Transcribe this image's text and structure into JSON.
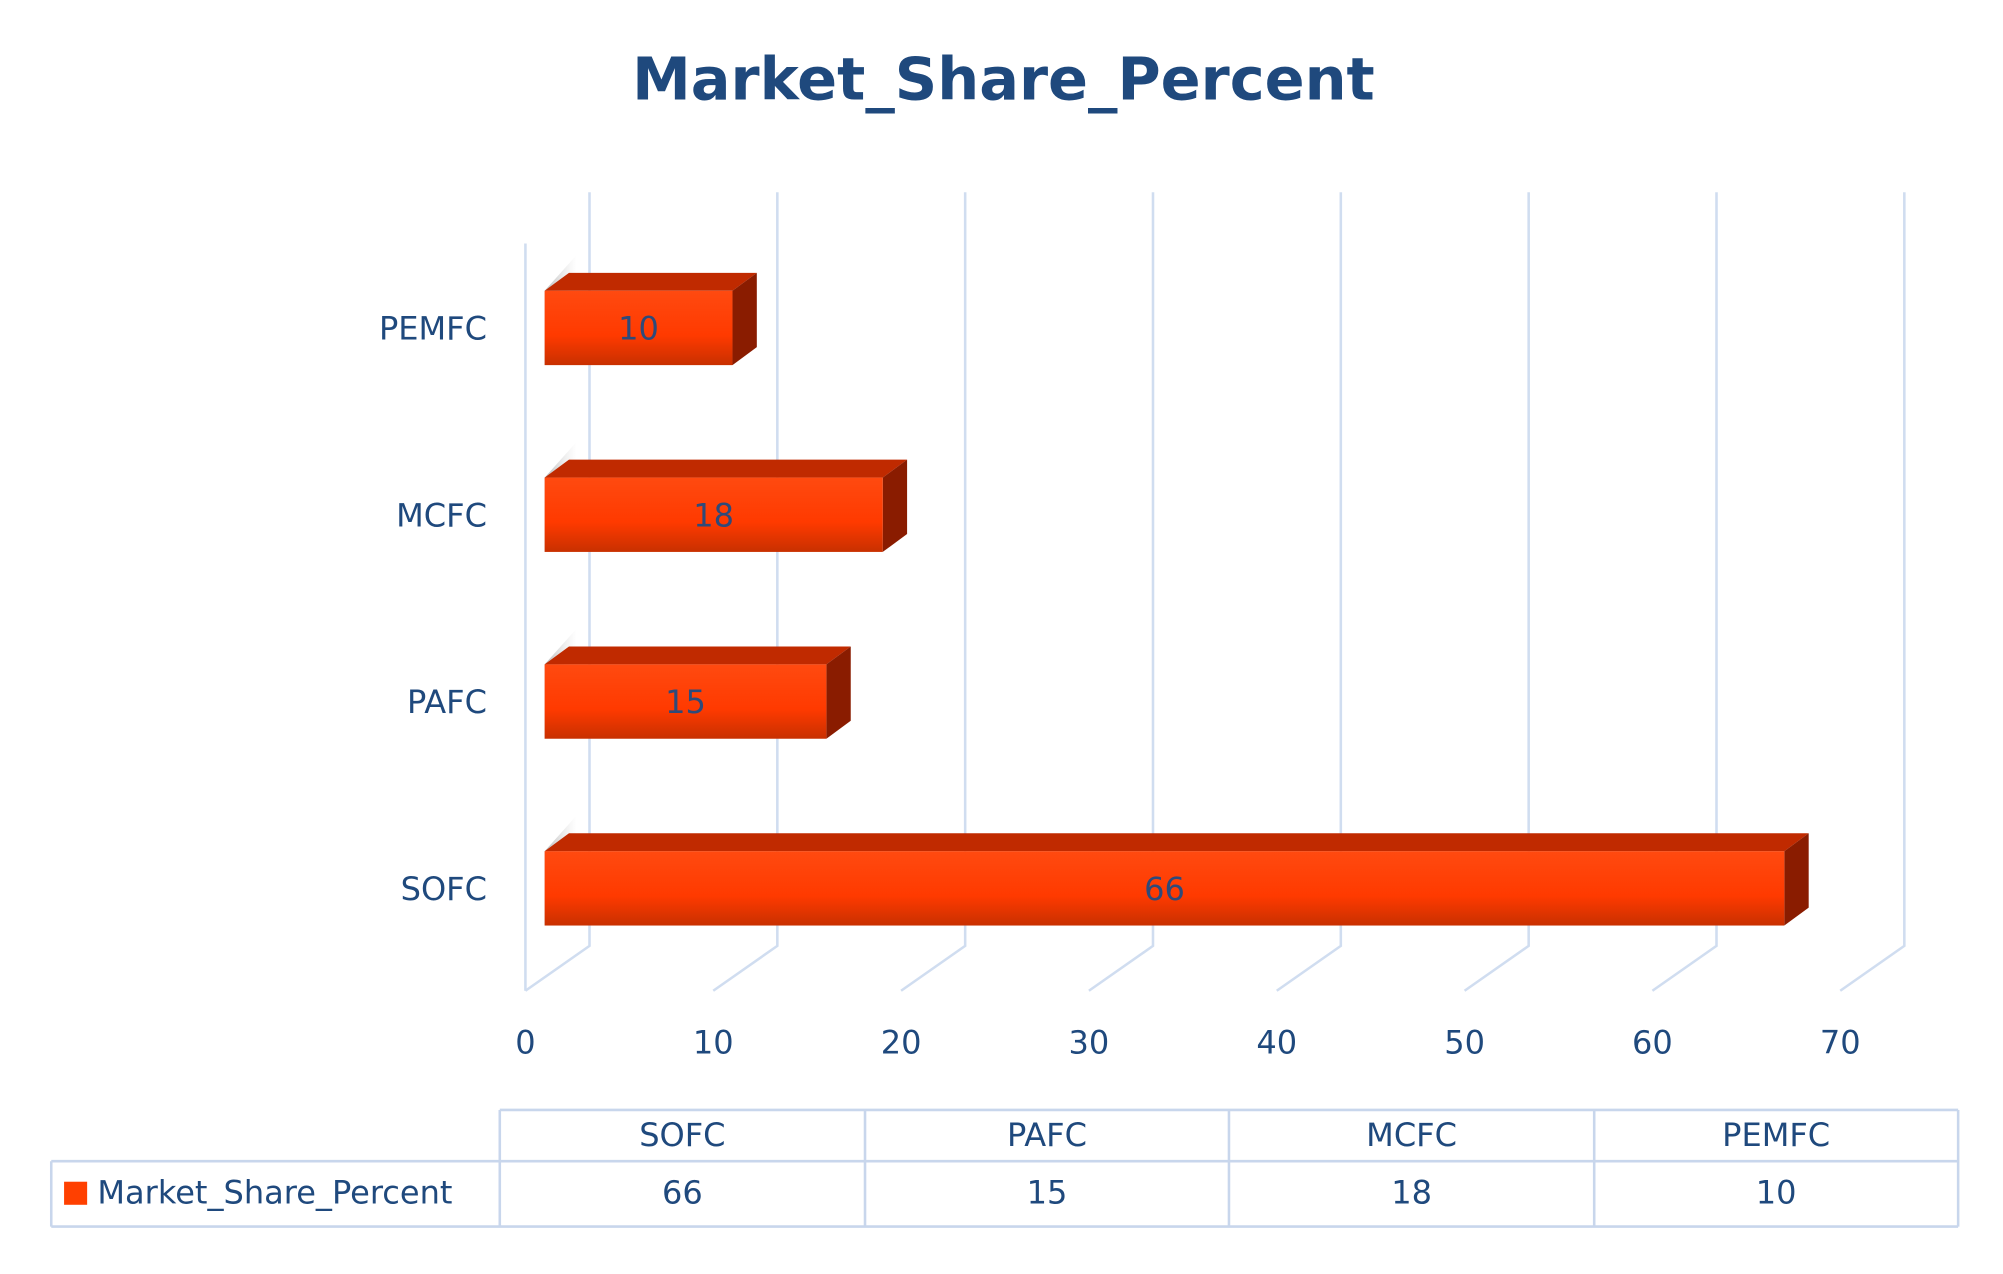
{
  "chart_data": {
    "type": "bar3d",
    "title": "Market_Share_Percent",
    "categories": [
      "SOFC",
      "PAFC",
      "MCFC",
      "PEMFC"
    ],
    "series": [
      {
        "name": "Market_Share_Percent",
        "color": "#ff4000",
        "values": [
          66,
          15,
          18,
          10
        ]
      }
    ],
    "xlim": [
      0,
      70
    ],
    "xticks": [
      0,
      10,
      20,
      30,
      40,
      50,
      60,
      70
    ],
    "grid": true,
    "data_table": true
  }
}
